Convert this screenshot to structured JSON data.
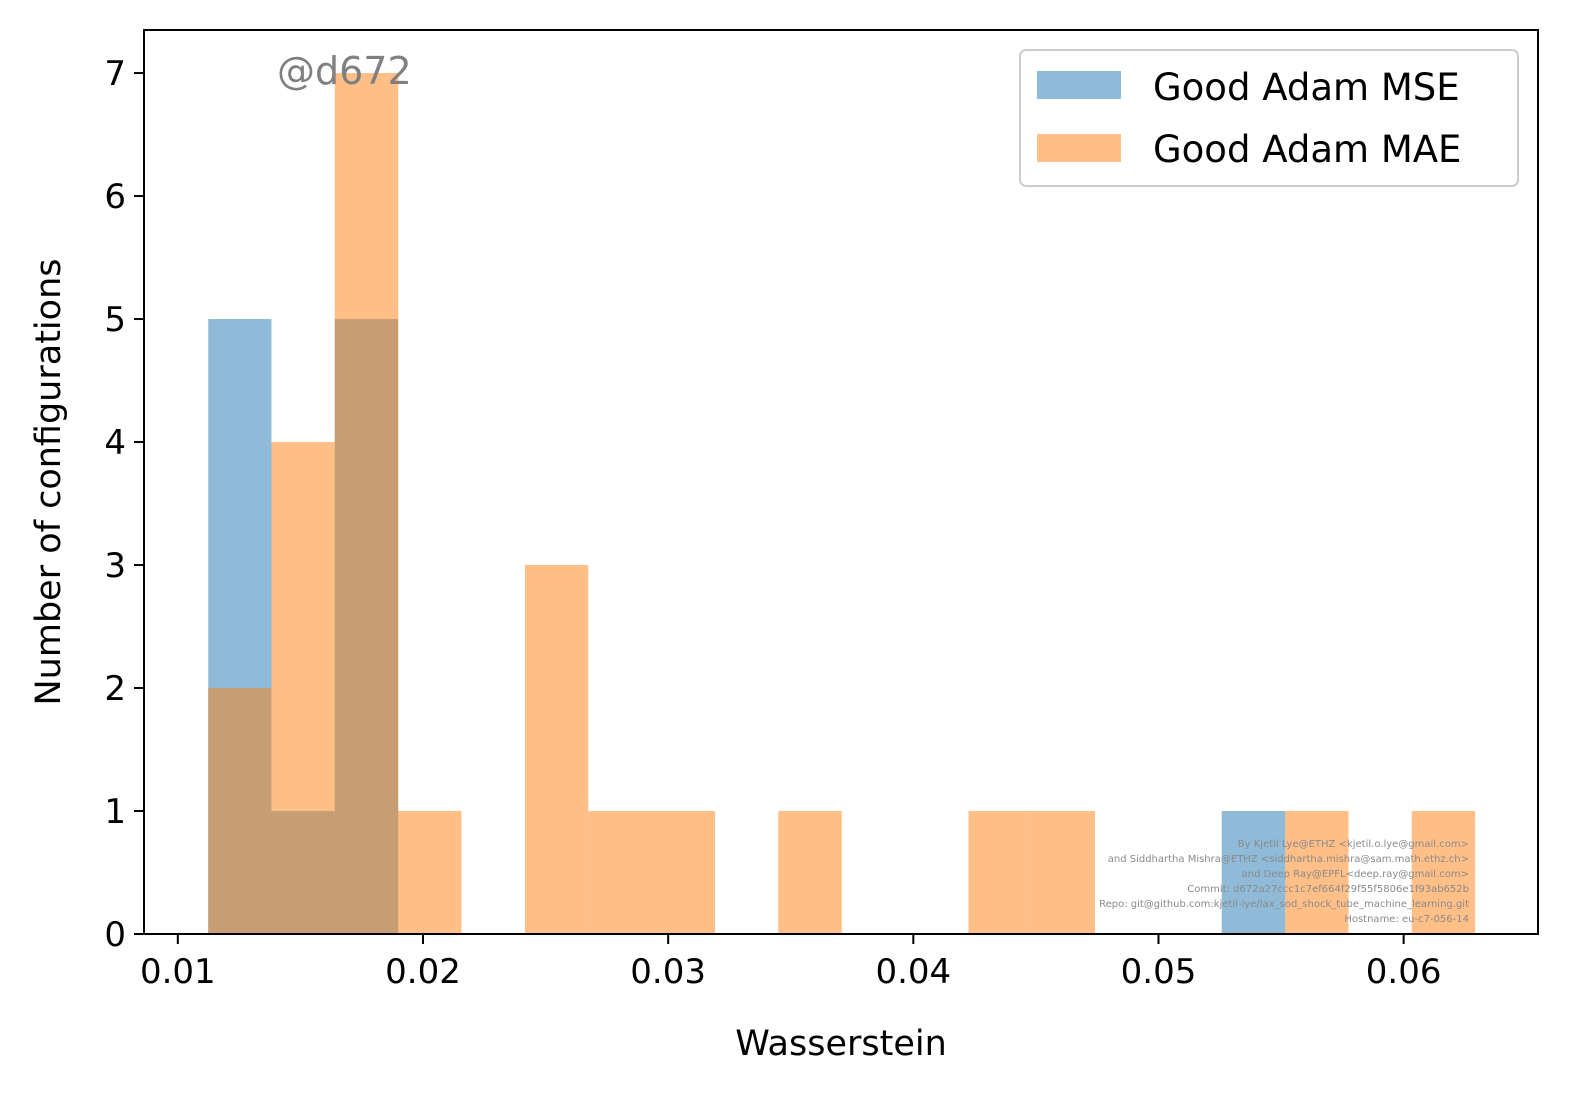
{
  "chart_data": {
    "type": "bar",
    "subtype": "overlaid-histogram",
    "xlabel": "Wasserstein",
    "ylabel": "Number of configurations",
    "xlim": [
      0.00862,
      0.06548
    ],
    "ylim": [
      0,
      7.35
    ],
    "xticks": [
      0.01,
      0.02,
      0.03,
      0.04,
      0.05,
      0.06
    ],
    "xtick_labels": [
      "0.01",
      "0.02",
      "0.03",
      "0.04",
      "0.05",
      "0.06"
    ],
    "yticks": [
      0,
      1,
      2,
      3,
      4,
      5,
      6,
      7
    ],
    "ytick_labels": [
      "0",
      "1",
      "2",
      "3",
      "4",
      "5",
      "6",
      "7"
    ],
    "grid": false,
    "legend_position": "top-right",
    "bin_edges": [
      0.01124,
      0.01382,
      0.0164,
      0.01899,
      0.02157,
      0.02416,
      0.02674,
      0.02932,
      0.03191,
      0.03449,
      0.03708,
      0.03966,
      0.04225,
      0.04483,
      0.04741,
      0.05,
      0.05258,
      0.05517,
      0.05775,
      0.06033,
      0.06292
    ],
    "series": [
      {
        "name": "Good Adam MSE",
        "color": "#1f77b4",
        "opacity": 0.5,
        "counts": [
          5,
          1,
          5,
          0,
          0,
          0,
          0,
          0,
          0,
          0,
          0,
          0,
          0,
          0,
          0,
          0,
          1,
          0,
          0,
          0
        ]
      },
      {
        "name": "Good Adam MAE",
        "color": "#ff7f0e",
        "opacity": 0.5,
        "counts": [
          2,
          4,
          7,
          1,
          0,
          3,
          1,
          1,
          0,
          1,
          0,
          0,
          1,
          1,
          0,
          0,
          0,
          1,
          0,
          1
        ]
      }
    ]
  },
  "watermark": "@d672",
  "credits": [
    "By Kjetil Lye@ETHZ <kjetil.o.lye@gmail.com>",
    "and Siddhartha Mishra@ETHZ <siddhartha.mishra@sam.math.ethz.ch>",
    "and Deep Ray@EPFL<deep.ray@gmail.com>",
    "Commit: d672a27ccc1c7ef664f29f55f5806e1f93ab652b",
    "Repo: git@github.com:kjetil-lye/lax_sod_shock_tube_machine_learning.git",
    "Hostname: eu-c7-056-14"
  ]
}
